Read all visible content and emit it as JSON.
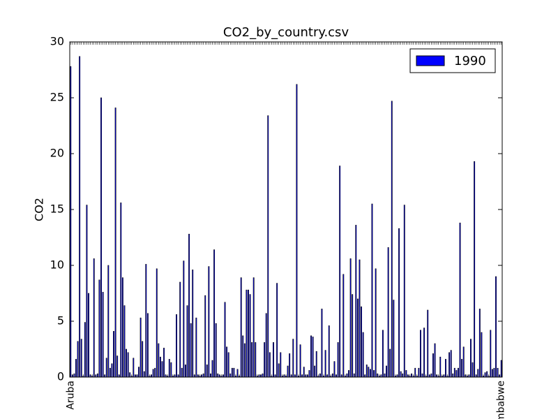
{
  "chart_data": {
    "type": "bar",
    "title": "CO2_by_country.csv",
    "ylabel": "CO2",
    "categories": [
      "Aruba",
      null,
      null,
      null,
      null,
      null,
      null,
      null,
      null,
      null,
      null,
      null,
      null,
      null,
      null,
      null,
      null,
      null,
      null,
      null,
      null,
      null,
      null,
      null,
      null,
      null,
      null,
      null,
      null,
      null,
      null,
      null,
      null,
      null,
      null,
      null,
      null,
      null,
      null,
      null,
      null,
      null,
      null,
      null,
      null,
      null,
      null,
      null,
      null,
      null,
      null,
      null,
      null,
      null,
      null,
      null,
      null,
      null,
      null,
      null,
      null,
      null,
      null,
      null,
      null,
      null,
      null,
      null,
      null,
      null,
      null,
      null,
      null,
      null,
      null,
      null,
      null,
      null,
      null,
      null,
      null,
      null,
      null,
      null,
      null,
      null,
      null,
      null,
      null,
      null,
      null,
      null,
      null,
      null,
      null,
      null,
      null,
      null,
      null,
      null,
      null,
      null,
      null,
      null,
      null,
      null,
      null,
      null,
      null,
      null,
      null,
      null,
      null,
      null,
      null,
      null,
      null,
      null,
      null,
      null,
      null,
      null,
      null,
      null,
      null,
      null,
      null,
      null,
      null,
      null,
      null,
      null,
      null,
      null,
      null,
      null,
      null,
      null,
      null,
      null,
      null,
      null,
      null,
      null,
      null,
      null,
      null,
      null,
      null,
      null,
      null,
      null,
      null,
      null,
      null,
      null,
      null,
      null,
      null,
      null,
      null,
      null,
      null,
      null,
      null,
      null,
      null,
      null,
      null,
      null,
      null,
      null,
      null,
      null,
      null,
      null,
      null,
      null,
      null,
      null,
      null,
      null,
      null,
      null,
      null,
      null,
      null,
      null,
      null,
      null,
      null,
      null,
      null,
      null,
      null,
      null,
      null,
      null,
      null,
      null,
      null,
      null,
      null,
      null,
      null,
      null,
      null,
      null,
      null,
      null,
      null,
      null,
      null,
      null,
      null,
      null,
      null,
      null,
      null,
      null,
      null,
      null,
      null,
      null,
      null,
      null,
      null,
      null,
      null,
      null,
      null,
      null,
      null,
      null,
      null,
      null,
      null,
      null,
      null,
      null,
      "Zimbabwe"
    ],
    "series": [
      {
        "name": "1990",
        "color": "#0000ff",
        "values": [
          27.8,
          0.2,
          0.3,
          1.6,
          3.2,
          28.7,
          3.4,
          0.1,
          4.9,
          15.4,
          7.5,
          0.2,
          0.1,
          10.6,
          0.2,
          0.3,
          8.7,
          25.0,
          7.6,
          0.2,
          1.7,
          10.0,
          0.8,
          1.2,
          4.1,
          24.1,
          1.9,
          0.2,
          15.6,
          8.9,
          6.4,
          2.5,
          2.2,
          0.4,
          0.1,
          1.7,
          0.2,
          0.2,
          0.9,
          5.3,
          3.2,
          0.5,
          10.1,
          5.7,
          0.1,
          0.2,
          0.7,
          0.8,
          9.7,
          3.0,
          1.8,
          1.4,
          2.6,
          0.2,
          0.1,
          1.6,
          1.3,
          0.1,
          0.2,
          5.6,
          0.2,
          8.5,
          0.8,
          10.4,
          1.1,
          6.4,
          12.8,
          4.8,
          9.6,
          0.2,
          5.3,
          0.2,
          0.1,
          0.2,
          0.3,
          7.3,
          1.1,
          9.9,
          0.3,
          1.5,
          11.4,
          4.8,
          0.3,
          0.2,
          0.1,
          0.2,
          6.7,
          2.7,
          2.2,
          0.3,
          0.8,
          0.8,
          0.1,
          0.7,
          0.1,
          8.9,
          3.7,
          3.0,
          7.8,
          7.8,
          7.4,
          3.1,
          8.9,
          3.1,
          0.1,
          0.2,
          0.2,
          0.3,
          3.1,
          5.7,
          23.4,
          2.2,
          0.1,
          3.1,
          0.2,
          8.4,
          1.2,
          2.2,
          0.1,
          0.2,
          0.1,
          1.0,
          2.1,
          0.2,
          3.4,
          0.2,
          26.2,
          0.1,
          2.9,
          0.2,
          0.9,
          0.2,
          0.2,
          0.6,
          3.7,
          3.6,
          1.0,
          2.3,
          0.1,
          0.3,
          6.1,
          0.1,
          2.4,
          0.2,
          4.6,
          0.1,
          0.3,
          1.4,
          0.2,
          3.1,
          18.9,
          0.2,
          9.2,
          0.1,
          0.3,
          0.6,
          10.6,
          7.4,
          0.3,
          13.6,
          7.0,
          10.5,
          6.3,
          4.0,
          0.2,
          1.1,
          0.9,
          0.7,
          15.5,
          0.6,
          9.7,
          0.3,
          0.1,
          0.2,
          4.2,
          0.3,
          1.0,
          11.6,
          2.5,
          24.7,
          6.9,
          0.1,
          0.2,
          13.3,
          0.5,
          0.3,
          15.4,
          0.6,
          0.2,
          0.1,
          0.3,
          0.1,
          0.8,
          0.1,
          0.8,
          4.2,
          0.3,
          4.4,
          0.1,
          6.0,
          0.2,
          0.3,
          2.1,
          3.0,
          0.2,
          0.1,
          1.8,
          0.1,
          0.2,
          1.6,
          0.1,
          2.2,
          2.4,
          0.3,
          0.8,
          0.6,
          0.8,
          13.8,
          1.6,
          2.7,
          0.2,
          0.1,
          0.2,
          3.4,
          1.3,
          19.3,
          0.2,
          0.7,
          6.1,
          4.0,
          0.1,
          0.4,
          0.5,
          0.1,
          4.2,
          0.7,
          0.8,
          9.0,
          0.8,
          0.2,
          1.5
        ]
      }
    ],
    "ylim": [
      0,
      30
    ],
    "yticks": [
      0,
      5,
      10,
      15,
      20,
      25,
      30
    ],
    "grid": false,
    "legend": "upper right"
  }
}
